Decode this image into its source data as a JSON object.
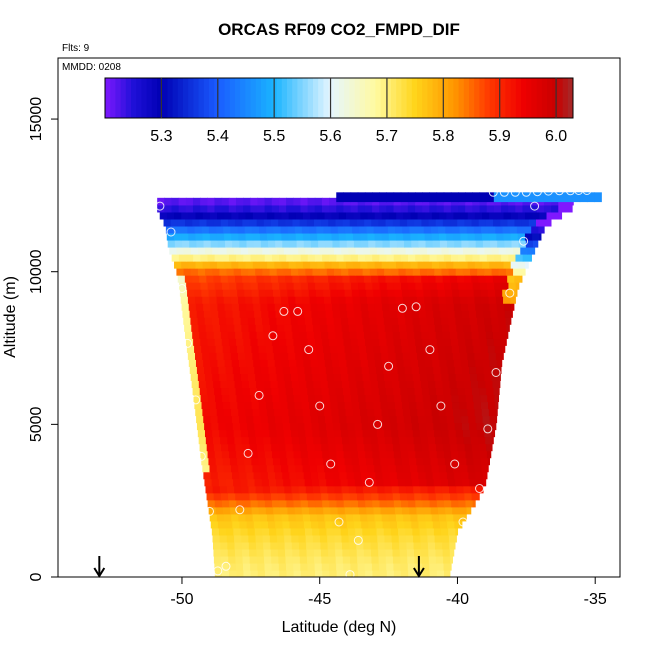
{
  "chart_data": {
    "type": "heatmap",
    "title": "ORCAS RF09 CO2_FMPD_DIF",
    "annotations": [
      "Flts: 9",
      "MMDD: 0208"
    ],
    "xlabel": "Latitude (deg N)",
    "ylabel": "Altitude (m)",
    "xlim": [
      -54.5,
      -34.1
    ],
    "ylim": [
      0,
      17000
    ],
    "x_ticks": [
      -50,
      -45,
      -40,
      -35
    ],
    "x_tick_labels": [
      "-50",
      "-45",
      "-40",
      "-35"
    ],
    "y_ticks": [
      0,
      5000,
      10000,
      15000
    ],
    "y_tick_labels": [
      "0",
      "5000",
      "10000",
      "15000"
    ],
    "grid": false,
    "colorbar": {
      "position": "top-inset",
      "range": [
        5.2,
        6.03
      ],
      "ticks": [
        5.3,
        5.4,
        5.5,
        5.6,
        5.7,
        5.8,
        5.9,
        6.0
      ],
      "tick_labels": [
        "5.3",
        "5.4",
        "5.5",
        "5.6",
        "5.7",
        "5.8",
        "5.9",
        "6.0"
      ],
      "stops": [
        {
          "v": 5.2,
          "c": "#7f18ff"
        },
        {
          "v": 5.25,
          "c": "#1f10d8"
        },
        {
          "v": 5.3,
          "c": "#0000b4"
        },
        {
          "v": 5.4,
          "c": "#1a5cff"
        },
        {
          "v": 5.5,
          "c": "#1ab4ff"
        },
        {
          "v": 5.6,
          "c": "#e6f6ff"
        },
        {
          "v": 5.68,
          "c": "#fffaa0"
        },
        {
          "v": 5.75,
          "c": "#ffd41a"
        },
        {
          "v": 5.82,
          "c": "#ff9600"
        },
        {
          "v": 5.88,
          "c": "#ff3a00"
        },
        {
          "v": 5.94,
          "c": "#f00000"
        },
        {
          "v": 6.0,
          "c": "#c80000"
        },
        {
          "v": 6.03,
          "c": "#a52a2a"
        }
      ]
    },
    "field_profile": [
      {
        "alt": 12200,
        "value": 5.22
      },
      {
        "alt": 11800,
        "value": 5.3
      },
      {
        "alt": 11300,
        "value": 5.45
      },
      {
        "alt": 10900,
        "value": 5.56
      },
      {
        "alt": 10500,
        "value": 5.68
      },
      {
        "alt": 10200,
        "value": 5.8
      },
      {
        "alt": 9800,
        "value": 5.9
      },
      {
        "alt": 9000,
        "value": 5.94
      },
      {
        "alt": 5000,
        "value": 5.96
      },
      {
        "alt": 3000,
        "value": 5.93
      },
      {
        "alt": 2500,
        "value": 5.86
      },
      {
        "alt": 2000,
        "value": 5.77
      },
      {
        "alt": 1400,
        "value": 5.74
      },
      {
        "alt": 500,
        "value": 5.71
      },
      {
        "alt": 0,
        "value": 5.7
      }
    ],
    "points": [
      {
        "x": -50.8,
        "y": 12150
      },
      {
        "x": -50.4,
        "y": 11300
      },
      {
        "x": -50.0,
        "y": 9450
      },
      {
        "x": -49.8,
        "y": 7650
      },
      {
        "x": -49.5,
        "y": 5800
      },
      {
        "x": -49.3,
        "y": 3950
      },
      {
        "x": -49.0,
        "y": 2150
      },
      {
        "x": -48.7,
        "y": 200
      },
      {
        "x": -48.4,
        "y": 350
      },
      {
        "x": -47.9,
        "y": 2200
      },
      {
        "x": -47.6,
        "y": 4050
      },
      {
        "x": -47.2,
        "y": 5950
      },
      {
        "x": -46.7,
        "y": 7900
      },
      {
        "x": -46.3,
        "y": 8700
      },
      {
        "x": -45.8,
        "y": 8700
      },
      {
        "x": -45.4,
        "y": 7450
      },
      {
        "x": -45.0,
        "y": 5600
      },
      {
        "x": -44.6,
        "y": 3700
      },
      {
        "x": -44.3,
        "y": 1800
      },
      {
        "x": -43.9,
        "y": 80
      },
      {
        "x": -43.6,
        "y": 1200
      },
      {
        "x": -43.2,
        "y": 3100
      },
      {
        "x": -42.9,
        "y": 5000
      },
      {
        "x": -42.5,
        "y": 6900
      },
      {
        "x": -42.0,
        "y": 8800
      },
      {
        "x": -41.5,
        "y": 8850
      },
      {
        "x": -41.0,
        "y": 7450
      },
      {
        "x": -40.6,
        "y": 5600
      },
      {
        "x": -40.1,
        "y": 3700
      },
      {
        "x": -39.8,
        "y": 1800
      },
      {
        "x": -39.2,
        "y": 2900
      },
      {
        "x": -38.9,
        "y": 4850
      },
      {
        "x": -38.6,
        "y": 6700
      },
      {
        "x": -38.1,
        "y": 9300
      },
      {
        "x": -37.6,
        "y": 11000
      },
      {
        "x": -37.2,
        "y": 12150
      },
      {
        "x": -38.7,
        "y": 12600
      },
      {
        "x": -38.3,
        "y": 12600
      },
      {
        "x": -37.9,
        "y": 12600
      },
      {
        "x": -37.5,
        "y": 12600
      },
      {
        "x": -37.1,
        "y": 12620
      },
      {
        "x": -36.7,
        "y": 12640
      },
      {
        "x": -36.3,
        "y": 12650
      },
      {
        "x": -35.9,
        "y": 12650
      },
      {
        "x": -35.6,
        "y": 12660
      },
      {
        "x": -35.3,
        "y": 12660
      }
    ],
    "arrows": [
      {
        "x": -53.0
      },
      {
        "x": -41.4
      }
    ]
  }
}
